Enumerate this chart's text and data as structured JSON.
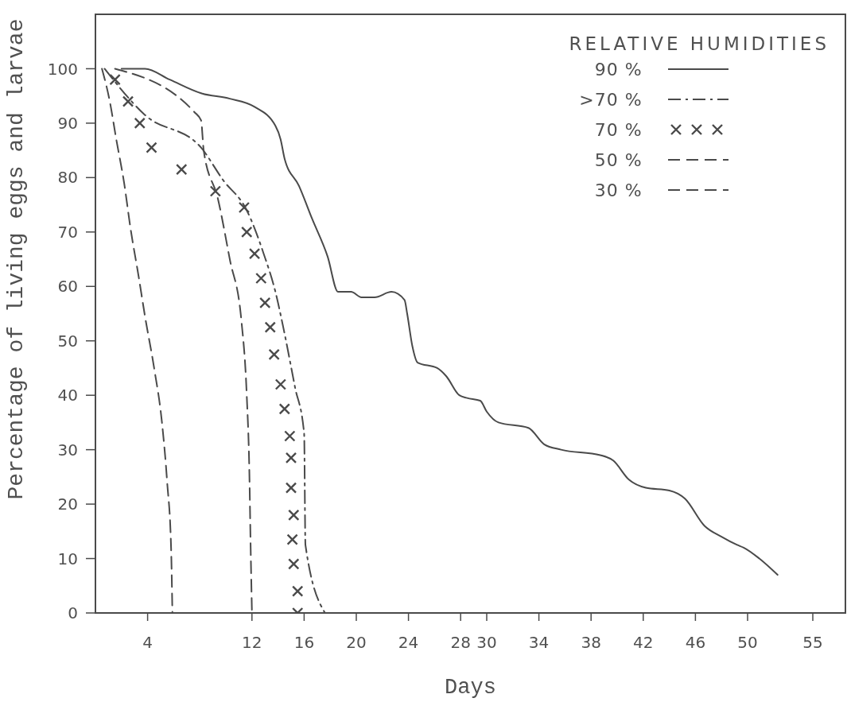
{
  "chart_data": {
    "type": "line",
    "xlabel": "Days",
    "ylabel": "Percentage of living eggs and larvae",
    "legend_title": "RELATIVE HUMIDITIES",
    "legend": "top right",
    "xlim": [
      0,
      57.5
    ],
    "xticks": [
      4,
      12,
      16,
      20,
      24,
      28,
      30,
      34,
      38,
      42,
      46,
      50,
      55
    ],
    "ylim": [
      0,
      110
    ],
    "yticks": [
      0,
      10,
      20,
      30,
      40,
      50,
      60,
      70,
      80,
      90,
      100
    ],
    "series": [
      {
        "name": "90 %",
        "line_style": "solid",
        "color": "#4a4a4a",
        "x": [
          2.0,
          3.8,
          5.7,
          8.1,
          10.3,
          12.2,
          13.8,
          14.2,
          14.5,
          15.6,
          16.6,
          17.8,
          18.6,
          19.6,
          20.4,
          21.4,
          22.7,
          23.7,
          23.9,
          24.3,
          24.7,
          26.2,
          26.9,
          27.9,
          28.5,
          29.5,
          30.0,
          30.9,
          33.2,
          34.4,
          35.7,
          38.7,
          39.7,
          40.9,
          42.2,
          44.0,
          45.2,
          46.7,
          48.0,
          49.2,
          49.7,
          50.9,
          52.3
        ],
        "values": [
          100,
          100,
          98,
          95.5,
          94.5,
          93,
          89.5,
          87,
          83.5,
          78.5,
          72.5,
          65.5,
          59,
          59,
          58,
          58,
          59,
          57.5,
          55,
          49,
          46,
          45,
          43.5,
          40,
          39.5,
          39,
          37,
          35,
          34,
          31,
          30,
          29,
          28,
          24.5,
          23,
          22.5,
          21,
          16,
          14,
          12.5,
          12,
          10,
          7
        ]
      },
      {
        "name": ">70 %",
        "line_style": "dashdot",
        "color": "#4a4a4a",
        "x": [
          0.7,
          3.8,
          8.1,
          9.8,
          11.6,
          12.9,
          13.8,
          14.4,
          15.3,
          16.0,
          16.1,
          17.6
        ],
        "values": [
          100,
          91.5,
          85.5,
          79.5,
          74,
          66,
          59,
          52.5,
          41.5,
          33,
          12.5,
          0
        ]
      },
      {
        "name": "70 %",
        "type": "scatter",
        "marker": "cross",
        "color": "#4a4a4a",
        "x": [
          1.5,
          2.5,
          3.4,
          4.3,
          6.6,
          9.2,
          11.4,
          11.6,
          12.2,
          12.7,
          13.0,
          13.4,
          13.7,
          14.2,
          14.5,
          14.9,
          15.0,
          15.0,
          15.2,
          15.1,
          15.2,
          15.5,
          15.5
        ],
        "values": [
          98,
          94,
          90,
          85.5,
          81.5,
          77.5,
          74.5,
          70,
          66,
          61.5,
          57,
          52.5,
          47.5,
          42,
          37.5,
          32.5,
          28.5,
          23,
          18,
          13.5,
          9,
          4,
          0
        ]
      },
      {
        "name": "50 %",
        "line_style": "dashed",
        "color": "#4a4a4a",
        "x": [
          1.5,
          7.6,
          8.1,
          8.3,
          9.4,
          10.3,
          11.2,
          11.6,
          11.8,
          11.9,
          12.0
        ],
        "values": [
          100,
          92,
          90.5,
          85,
          76,
          65,
          53.5,
          40,
          26,
          12,
          0
        ]
      },
      {
        "name": "30 %",
        "line_style": "dashed",
        "color": "#4a4a4a",
        "x": [
          0.5,
          1.1,
          1.6,
          2.2,
          2.7,
          3.3,
          3.8,
          4.5,
          5.1,
          5.5,
          5.8,
          5.9
        ],
        "values": [
          100,
          94,
          87,
          79,
          70.5,
          62,
          54.5,
          45,
          35,
          24,
          12,
          0
        ]
      }
    ]
  }
}
